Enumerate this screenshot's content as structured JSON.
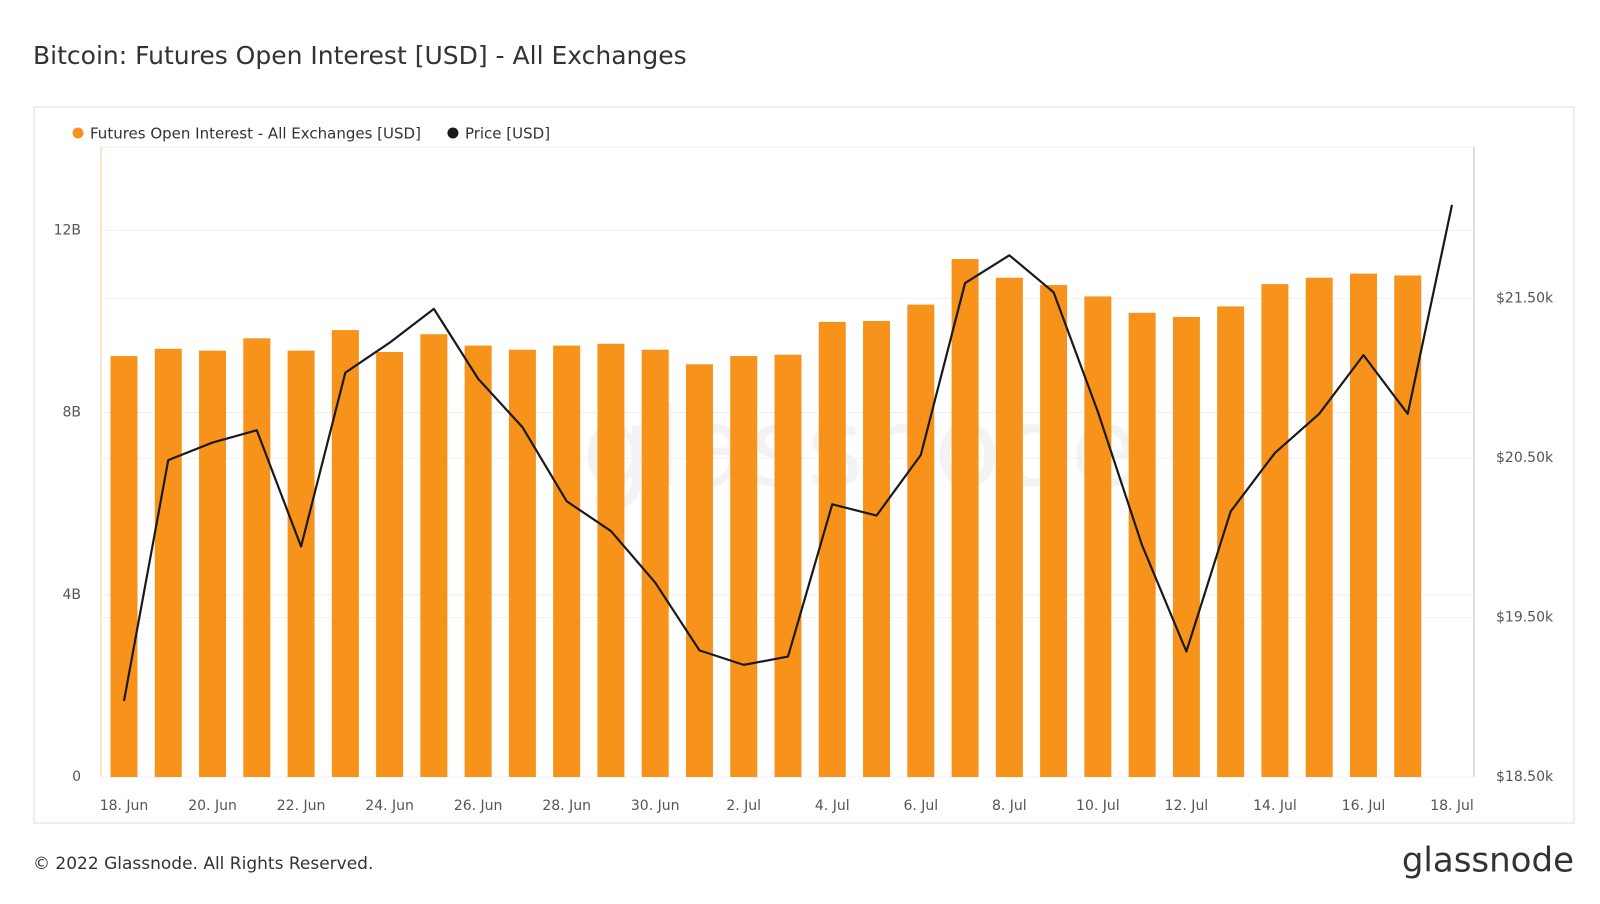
{
  "title": "Bitcoin: Futures Open Interest [USD] - All Exchanges",
  "footer": "© 2022 Glassnode. All Rights Reserved.",
  "logo": "glassnode",
  "watermark": "glassnode",
  "chart_data": {
    "type": "bar",
    "categories": [
      "18. Jun",
      null,
      "20. Jun",
      null,
      "22. Jun",
      null,
      "24. Jun",
      null,
      "26. Jun",
      null,
      "28. Jun",
      null,
      "30. Jun",
      null,
      "2. Jul",
      null,
      "4. Jul",
      null,
      "6. Jul",
      null,
      "8. Jul",
      null,
      "10. Jul",
      null,
      "12. Jul",
      null,
      "14. Jul",
      null,
      "16. Jul",
      null,
      "18. Jul"
    ],
    "series": [
      {
        "name": "Futures Open Interest - All Exchanges [USD]",
        "type": "bar",
        "color": "#f7931a",
        "values": [
          9240000000,
          9400000000,
          9360000000,
          9630000000,
          9360000000,
          9810000000,
          9330000000,
          9720000000,
          9470000000,
          9380000000,
          9470000000,
          9510000000,
          9380000000,
          9060000000,
          9240000000,
          9270000000,
          9990000000,
          10010000000,
          10370000000,
          11370000000,
          10960000000,
          10800000000,
          10550000000,
          10190000000,
          10100000000,
          10330000000,
          10820000000,
          10960000000,
          11050000000,
          11010000000,
          null
        ]
      },
      {
        "name": "Price [USD]",
        "type": "line",
        "axis": "y2",
        "color": "#1a1a1a",
        "values": [
          18977,
          20487,
          20597,
          20674,
          19945,
          21035,
          21223,
          21435,
          20997,
          20694,
          20229,
          20042,
          19719,
          19294,
          19203,
          19255,
          20210,
          20139,
          20519,
          21597,
          21771,
          21539,
          20790,
          19952,
          19287,
          20165,
          20532,
          20777,
          21145,
          20777,
          22087
        ]
      }
    ],
    "ylim": [
      0,
      13830000000
    ],
    "yticks": [
      {
        "value": 0,
        "label": "0"
      },
      {
        "value": 4000000000,
        "label": "4B"
      },
      {
        "value": 8000000000,
        "label": "8B"
      },
      {
        "value": 12000000000,
        "label": "12B"
      }
    ],
    "y2lim": [
      18500,
      22450
    ],
    "y2ticks": [
      {
        "value": 18500,
        "label": "$18.50k"
      },
      {
        "value": 19500,
        "label": "$19.50k"
      },
      {
        "value": 20500,
        "label": "$20.50k"
      },
      {
        "value": 21500,
        "label": "$21.50k"
      }
    ],
    "grid": true
  }
}
